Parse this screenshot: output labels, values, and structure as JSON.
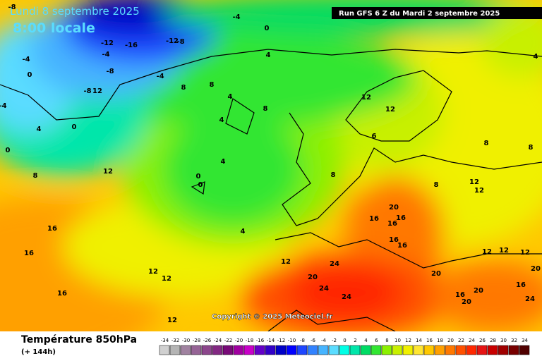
{
  "header": {
    "date": "Lundi 8 septembre 2025",
    "time": "8:00 locale",
    "run": "Run GFS 6 Z du Mardi 2 septembre 2025"
  },
  "copyright": "Copyright © 2025 Meteociel.fr",
  "footer": {
    "title": "Température 850hPa",
    "lead": "(+ 144h)"
  },
  "isotherm_labels": [
    -8,
    -4,
    0,
    -12,
    -16,
    -12,
    -8,
    -4,
    -8,
    -4,
    4,
    -8,
    12,
    -4,
    0,
    -4,
    4,
    0,
    0,
    8,
    8,
    4,
    8,
    4,
    4,
    0,
    0,
    4,
    8,
    12,
    12,
    6,
    8,
    8,
    8,
    12,
    12,
    4,
    8,
    12,
    16,
    16,
    16,
    12,
    12,
    12,
    12,
    20,
    16,
    16,
    16,
    16,
    16,
    24,
    20,
    24,
    24,
    20,
    12,
    12,
    12,
    20,
    16,
    16,
    20,
    20,
    24
  ],
  "legend": {
    "values": [
      -34,
      -32,
      -30,
      -28,
      -26,
      -24,
      -22,
      -20,
      -18,
      -16,
      -14,
      -12,
      -10,
      -8,
      -6,
      -4,
      -2,
      0,
      2,
      4,
      6,
      8,
      10,
      12,
      14,
      16,
      18,
      20,
      22,
      24,
      26,
      28,
      30,
      32,
      34
    ],
    "colors": [
      "#d0d0d0",
      "#b4b4b4",
      "#a082a0",
      "#966496",
      "#8c468c",
      "#822882",
      "#780a78",
      "#a000a0",
      "#c800c8",
      "#6400c8",
      "#3200c8",
      "#0000c8",
      "#0000ff",
      "#1e46ff",
      "#3282ff",
      "#46b4ff",
      "#5adcff",
      "#00ffe6",
      "#00e6aa",
      "#00dc64",
      "#32e632",
      "#8cf000",
      "#c8f000",
      "#f0f000",
      "#ffe632",
      "#ffc800",
      "#ffa000",
      "#ff7800",
      "#ff5000",
      "#ff2800",
      "#e61414",
      "#c80000",
      "#a00000",
      "#780000",
      "#500000"
    ]
  }
}
